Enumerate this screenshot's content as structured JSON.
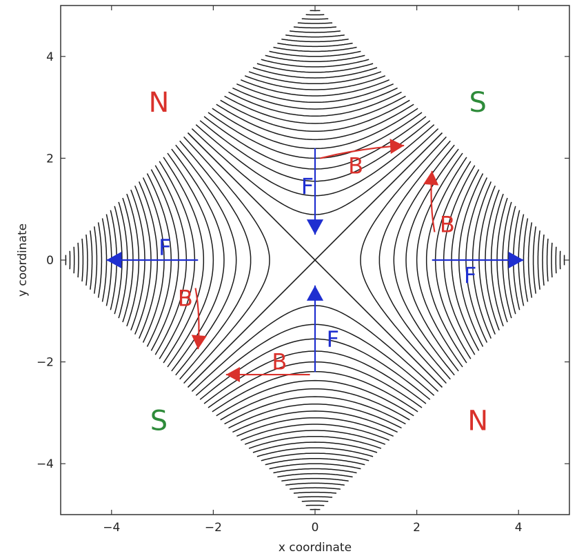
{
  "axes": {
    "xlabel": "x coordinate",
    "ylabel": "y coordinate",
    "xlim": [
      -5,
      5
    ],
    "ylim": [
      -5,
      5
    ],
    "xticks": [
      -4,
      -2,
      0,
      2,
      4
    ],
    "yticks": [
      -4,
      -2,
      0,
      2,
      4
    ],
    "xtick_labels": [
      "−4",
      "−2",
      "0",
      "2",
      "4"
    ],
    "ytick_labels": [
      "−4",
      "−2",
      "0",
      "2",
      "4"
    ]
  },
  "field_lines": {
    "description_type": "hyperbolic contours x^2 - y^2 = c inside |x|+|y| <= 5",
    "color": "#1a1a1a",
    "levels": [
      0.8,
      1.6,
      2.4,
      3.2,
      4.0,
      4.8,
      5.6,
      6.4,
      7.2,
      8.0,
      8.8,
      9.6,
      10.4,
      11.2,
      12.0,
      12.8,
      13.6,
      14.4,
      15.2,
      16.0,
      16.8,
      17.6,
      18.4,
      19.2,
      20.0,
      20.8,
      21.6,
      22.4,
      23.2,
      24.0
    ]
  },
  "poles": [
    {
      "text": "N",
      "x": -3.07,
      "y": 3.1,
      "color": "#d9312b"
    },
    {
      "text": "S",
      "x": 3.2,
      "y": 3.1,
      "color": "#2e8b3a"
    },
    {
      "text": "S",
      "x": -3.07,
      "y": -3.15,
      "color": "#2e8b3a"
    },
    {
      "text": "N",
      "x": 3.2,
      "y": -3.15,
      "color": "#d9312b"
    }
  ],
  "force_arrows": {
    "color": "#1f2fd0",
    "label": "F",
    "items": [
      {
        "from": [
          0,
          2.2
        ],
        "to": [
          0,
          0.5
        ],
        "label_at": [
          -0.15,
          1.45
        ]
      },
      {
        "from": [
          0,
          -2.2
        ],
        "to": [
          0,
          -0.5
        ],
        "label_at": [
          0.35,
          -1.55
        ]
      },
      {
        "from": [
          -2.3,
          0
        ],
        "to": [
          -4.1,
          0
        ],
        "label_at": [
          -2.95,
          0.25
        ]
      },
      {
        "from": [
          2.3,
          0
        ],
        "to": [
          4.1,
          0
        ],
        "label_at": [
          3.05,
          -0.3
        ]
      }
    ]
  },
  "field_arrows": {
    "color": "#d9312b",
    "label": "B",
    "items": [
      {
        "points": [
          [
            0.1,
            2.0
          ],
          [
            0.9,
            2.2
          ],
          [
            1.75,
            2.25
          ]
        ],
        "label_at": [
          0.8,
          1.85
        ]
      },
      {
        "points": [
          [
            2.35,
            0.55
          ],
          [
            2.25,
            1.1
          ],
          [
            2.3,
            1.75
          ]
        ],
        "label_at": [
          2.6,
          0.7
        ]
      },
      {
        "points": [
          [
            -2.35,
            -0.55
          ],
          [
            -2.25,
            -1.1
          ],
          [
            -2.3,
            -1.75
          ]
        ],
        "label_at": [
          -2.55,
          -0.75
        ]
      },
      {
        "points": [
          [
            -0.1,
            -2.25
          ],
          [
            -0.9,
            -2.25
          ],
          [
            -1.75,
            -2.25
          ]
        ],
        "label_at": [
          -0.7,
          -2.0
        ]
      }
    ]
  }
}
